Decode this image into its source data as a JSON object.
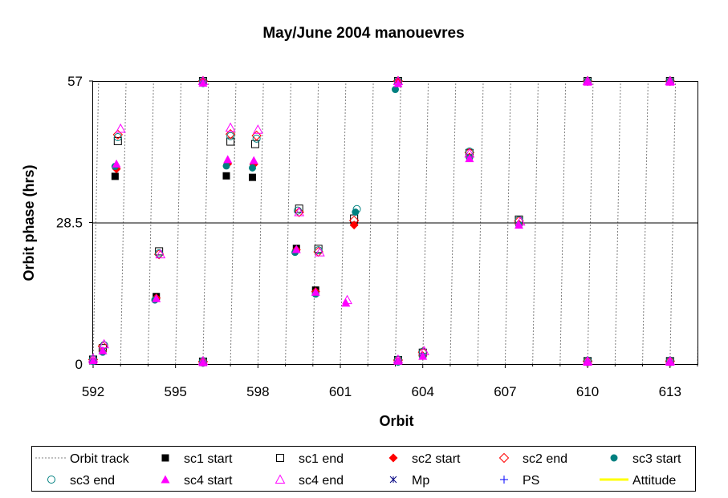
{
  "chart_data": {
    "type": "scatter",
    "title": "May/June 2004 manouevres",
    "xlabel": "Orbit",
    "ylabel": "Orbit phase (hrs)",
    "xlim": [
      592,
      614
    ],
    "ylim": [
      0,
      57
    ],
    "xticks": [
      592,
      595,
      598,
      601,
      604,
      607,
      610,
      613
    ],
    "xtick_labels": [
      "592",
      "595",
      "598",
      "601",
      "604",
      "607",
      "610",
      "613"
    ],
    "yticks": [
      0,
      28.5,
      57
    ],
    "ytick_labels": [
      "0",
      "28.5",
      "57"
    ],
    "grid": false,
    "reference_line_y": 28.5,
    "legend_position": "bottom",
    "orbit_track": {
      "orbit_period_hrs": 57,
      "tilt_orbits": 0.2
    },
    "series": [
      {
        "name": "Orbit track",
        "marker": "dashed-line",
        "color": "#808080",
        "points": []
      },
      {
        "name": "sc1 start",
        "marker": "square-filled",
        "color": "#000000",
        "points": [
          [
            592.0,
            0.8
          ],
          [
            592.35,
            3.0
          ],
          [
            592.8,
            37.8
          ],
          [
            594.3,
            13.6
          ],
          [
            596.0,
            57.0
          ],
          [
            596.0,
            0.4
          ],
          [
            596.85,
            37.9
          ],
          [
            597.8,
            37.6
          ],
          [
            599.4,
            23.3
          ],
          [
            600.1,
            14.9
          ],
          [
            601.5,
            28.5
          ],
          [
            603.1,
            57.0
          ],
          [
            603.1,
            0.6
          ],
          [
            604.0,
            2.0
          ],
          [
            605.7,
            42.2
          ],
          [
            607.5,
            28.5
          ],
          [
            610.0,
            57.0
          ],
          [
            610.0,
            0.4
          ],
          [
            613.0,
            57.0
          ],
          [
            613.0,
            0.4
          ]
        ]
      },
      {
        "name": "sc1 end",
        "marker": "square-open",
        "color": "#000000",
        "points": [
          [
            592.0,
            0.9
          ],
          [
            592.35,
            3.2
          ],
          [
            592.9,
            44.9
          ],
          [
            594.4,
            22.7
          ],
          [
            596.0,
            57.0
          ],
          [
            596.0,
            0.5
          ],
          [
            597.0,
            44.8
          ],
          [
            597.9,
            44.3
          ],
          [
            599.5,
            31.3
          ],
          [
            600.2,
            23.2
          ],
          [
            601.5,
            29.3
          ],
          [
            603.1,
            57.0
          ],
          [
            603.1,
            0.8
          ],
          [
            604.0,
            2.3
          ],
          [
            605.7,
            42.5
          ],
          [
            607.5,
            29.1
          ],
          [
            610.0,
            57.0
          ],
          [
            610.0,
            0.6
          ],
          [
            613.0,
            57.0
          ],
          [
            613.0,
            0.6
          ]
        ]
      },
      {
        "name": "sc2 start",
        "marker": "diamond-filled",
        "color": "#ff0000",
        "points": [
          [
            592.0,
            0.6
          ],
          [
            592.35,
            2.6
          ],
          [
            592.85,
            39.3
          ],
          [
            594.3,
            13.3
          ],
          [
            596.0,
            57.0
          ],
          [
            596.0,
            0.3
          ],
          [
            596.9,
            40.3
          ],
          [
            597.85,
            40.2
          ],
          [
            599.4,
            23.0
          ],
          [
            600.1,
            14.6
          ],
          [
            601.5,
            28.0
          ],
          [
            603.1,
            57.0
          ],
          [
            603.1,
            0.5
          ],
          [
            604.0,
            1.7
          ],
          [
            605.7,
            41.7
          ],
          [
            607.5,
            28.2
          ],
          [
            610.0,
            57.0
          ],
          [
            610.0,
            0.3
          ],
          [
            613.0,
            57.0
          ],
          [
            613.0,
            0.3
          ]
        ]
      },
      {
        "name": "sc2 end",
        "marker": "diamond-open",
        "color": "#ff0000",
        "points": [
          [
            592.0,
            0.9
          ],
          [
            592.35,
            3.6
          ],
          [
            592.9,
            46.2
          ],
          [
            594.4,
            22.1
          ],
          [
            596.0,
            57.0
          ],
          [
            596.0,
            0.5
          ],
          [
            597.0,
            46.3
          ],
          [
            597.95,
            46.0
          ],
          [
            599.5,
            30.6
          ],
          [
            600.2,
            22.6
          ],
          [
            601.5,
            28.9
          ],
          [
            603.1,
            57.0
          ],
          [
            603.1,
            0.8
          ],
          [
            604.0,
            2.4
          ],
          [
            605.7,
            42.6
          ],
          [
            607.5,
            28.8
          ],
          [
            610.0,
            57.0
          ],
          [
            610.0,
            0.6
          ],
          [
            613.0,
            57.0
          ],
          [
            613.0,
            0.6
          ]
        ]
      },
      {
        "name": "sc3 start",
        "marker": "circle-filled",
        "color": "#008080",
        "points": [
          [
            592.0,
            0.5
          ],
          [
            592.35,
            2.4
          ],
          [
            592.8,
            39.8
          ],
          [
            594.25,
            12.9
          ],
          [
            596.0,
            56.5
          ],
          [
            596.0,
            0.2
          ],
          [
            596.85,
            39.9
          ],
          [
            597.8,
            39.5
          ],
          [
            599.35,
            22.5
          ],
          [
            600.1,
            14.1
          ],
          [
            601.55,
            30.6
          ],
          [
            603.0,
            55.3
          ],
          [
            603.1,
            0.4
          ],
          [
            604.0,
            1.6
          ],
          [
            605.7,
            41.5
          ],
          [
            607.5,
            28.0
          ],
          [
            610.0,
            56.8
          ],
          [
            610.0,
            0.3
          ],
          [
            613.0,
            56.8
          ],
          [
            613.0,
            0.3
          ]
        ]
      },
      {
        "name": "sc3 end",
        "marker": "circle-open",
        "color": "#008080",
        "points": [
          [
            592.0,
            1.0
          ],
          [
            592.4,
            3.8
          ],
          [
            592.9,
            45.7
          ],
          [
            594.4,
            22.3
          ],
          [
            596.0,
            57.0
          ],
          [
            596.0,
            0.6
          ],
          [
            597.0,
            45.9
          ],
          [
            597.95,
            45.4
          ],
          [
            599.45,
            30.9
          ],
          [
            600.2,
            22.9
          ],
          [
            601.6,
            31.2
          ],
          [
            603.1,
            57.0
          ],
          [
            603.1,
            0.9
          ],
          [
            604.0,
            2.5
          ],
          [
            605.7,
            42.8
          ],
          [
            607.5,
            29.0
          ],
          [
            610.0,
            57.0
          ],
          [
            610.0,
            0.7
          ],
          [
            613.0,
            57.0
          ],
          [
            613.0,
            0.7
          ]
        ]
      },
      {
        "name": "sc4 start",
        "marker": "triangle-filled",
        "color": "#ff00ff",
        "points": [
          [
            592.0,
            0.7
          ],
          [
            592.35,
            2.7
          ],
          [
            592.85,
            40.3
          ],
          [
            594.3,
            13.2
          ],
          [
            596.0,
            56.6
          ],
          [
            596.0,
            0.3
          ],
          [
            596.9,
            41.2
          ],
          [
            597.85,
            41.0
          ],
          [
            599.4,
            23.1
          ],
          [
            600.1,
            14.5
          ],
          [
            601.2,
            12.3
          ],
          [
            603.1,
            56.5
          ],
          [
            603.1,
            0.6
          ],
          [
            604.0,
            1.6
          ],
          [
            605.7,
            41.4
          ],
          [
            607.5,
            28.0
          ],
          [
            610.0,
            56.8
          ],
          [
            610.0,
            0.4
          ],
          [
            613.0,
            56.8
          ],
          [
            613.0,
            0.4
          ]
        ]
      },
      {
        "name": "sc4 end",
        "marker": "triangle-open",
        "color": "#ff00ff",
        "points": [
          [
            592.0,
            1.1
          ],
          [
            592.4,
            4.0
          ],
          [
            593.0,
            47.4
          ],
          [
            594.45,
            22.1
          ],
          [
            596.0,
            57.0
          ],
          [
            596.0,
            0.6
          ],
          [
            597.0,
            47.6
          ],
          [
            598.0,
            47.2
          ],
          [
            599.5,
            30.6
          ],
          [
            600.25,
            22.5
          ],
          [
            601.25,
            12.9
          ],
          [
            603.1,
            57.0
          ],
          [
            603.1,
            0.9
          ],
          [
            604.05,
            2.6
          ],
          [
            605.7,
            42.4
          ],
          [
            607.55,
            28.7
          ],
          [
            610.0,
            57.0
          ],
          [
            610.0,
            0.6
          ],
          [
            613.0,
            57.0
          ],
          [
            613.0,
            0.6
          ]
        ]
      },
      {
        "name": "Mp",
        "marker": "asterisk",
        "color": "#000080",
        "points": []
      },
      {
        "name": "PS",
        "marker": "plus",
        "color": "#0000ff",
        "points": []
      },
      {
        "name": "Attitude",
        "marker": "solid-line",
        "color": "#ffff00",
        "points": []
      }
    ]
  }
}
